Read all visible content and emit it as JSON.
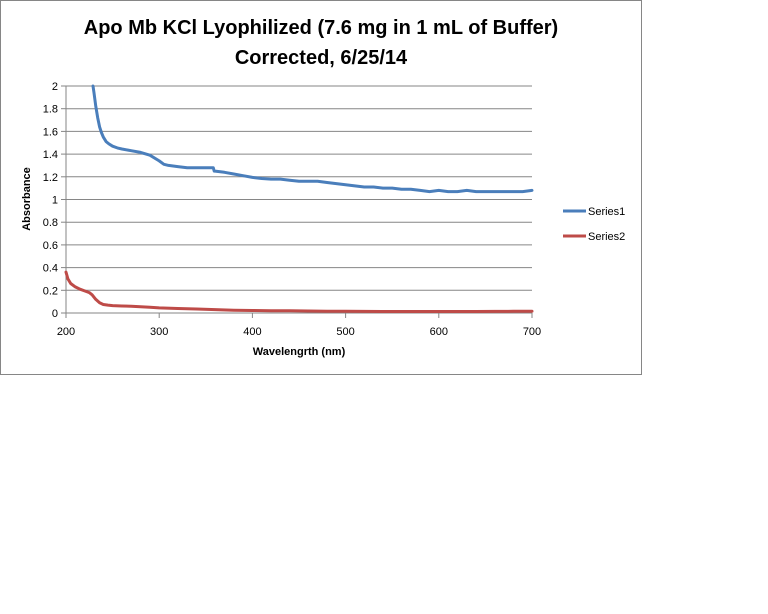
{
  "chart_data": {
    "type": "line",
    "title_line1": "Apo Mb KCl Lyophilized (7.6  mg in 1 mL of Buffer)",
    "title_line2": "Corrected, 6/25/14",
    "xlabel": "Wavelengrth (nm)",
    "ylabel": "Absorbance",
    "xlim": [
      200,
      700
    ],
    "ylim": [
      0,
      2
    ],
    "xticks": [
      200,
      300,
      400,
      500,
      600,
      700
    ],
    "yticks": [
      0,
      0.2,
      0.4,
      0.6,
      0.8,
      1,
      1.2,
      1.4,
      1.6,
      1.8,
      2
    ],
    "grid": "horizontal",
    "legend_position": "right",
    "series": [
      {
        "name": "Series1",
        "color": "#4a7ebb",
        "x": [
          229,
          230,
          232,
          234,
          236,
          238,
          240,
          243,
          246,
          250,
          255,
          260,
          270,
          280,
          290,
          300,
          305,
          310,
          320,
          330,
          340,
          350,
          358,
          359,
          360,
          370,
          380,
          390,
          400,
          410,
          420,
          430,
          440,
          450,
          460,
          470,
          480,
          490,
          500,
          510,
          520,
          530,
          540,
          550,
          560,
          570,
          580,
          590,
          600,
          610,
          620,
          630,
          640,
          650,
          660,
          670,
          680,
          690,
          700
        ],
        "y": [
          2.0,
          1.94,
          1.82,
          1.72,
          1.64,
          1.59,
          1.55,
          1.51,
          1.49,
          1.47,
          1.455,
          1.445,
          1.43,
          1.415,
          1.39,
          1.34,
          1.31,
          1.3,
          1.29,
          1.28,
          1.28,
          1.28,
          1.28,
          1.25,
          1.25,
          1.24,
          1.225,
          1.21,
          1.195,
          1.185,
          1.18,
          1.18,
          1.17,
          1.16,
          1.16,
          1.16,
          1.15,
          1.14,
          1.13,
          1.12,
          1.11,
          1.11,
          1.1,
          1.1,
          1.09,
          1.09,
          1.08,
          1.07,
          1.08,
          1.07,
          1.07,
          1.08,
          1.07,
          1.07,
          1.07,
          1.07,
          1.07,
          1.07,
          1.08
        ]
      },
      {
        "name": "Series2",
        "color": "#be4b48",
        "x": [
          200,
          202,
          205,
          210,
          215,
          220,
          225,
          228,
          232,
          236,
          240,
          245,
          250,
          260,
          270,
          280,
          290,
          300,
          320,
          340,
          360,
          380,
          400,
          420,
          440,
          460,
          480,
          500,
          520,
          540,
          560,
          580,
          600,
          620,
          640,
          660,
          680,
          700
        ],
        "y": [
          0.36,
          0.3,
          0.26,
          0.23,
          0.21,
          0.195,
          0.18,
          0.16,
          0.12,
          0.09,
          0.075,
          0.07,
          0.065,
          0.062,
          0.06,
          0.055,
          0.05,
          0.045,
          0.04,
          0.035,
          0.03,
          0.025,
          0.022,
          0.02,
          0.02,
          0.018,
          0.016,
          0.015,
          0.014,
          0.013,
          0.013,
          0.013,
          0.013,
          0.013,
          0.013,
          0.014,
          0.015,
          0.015
        ]
      }
    ]
  }
}
